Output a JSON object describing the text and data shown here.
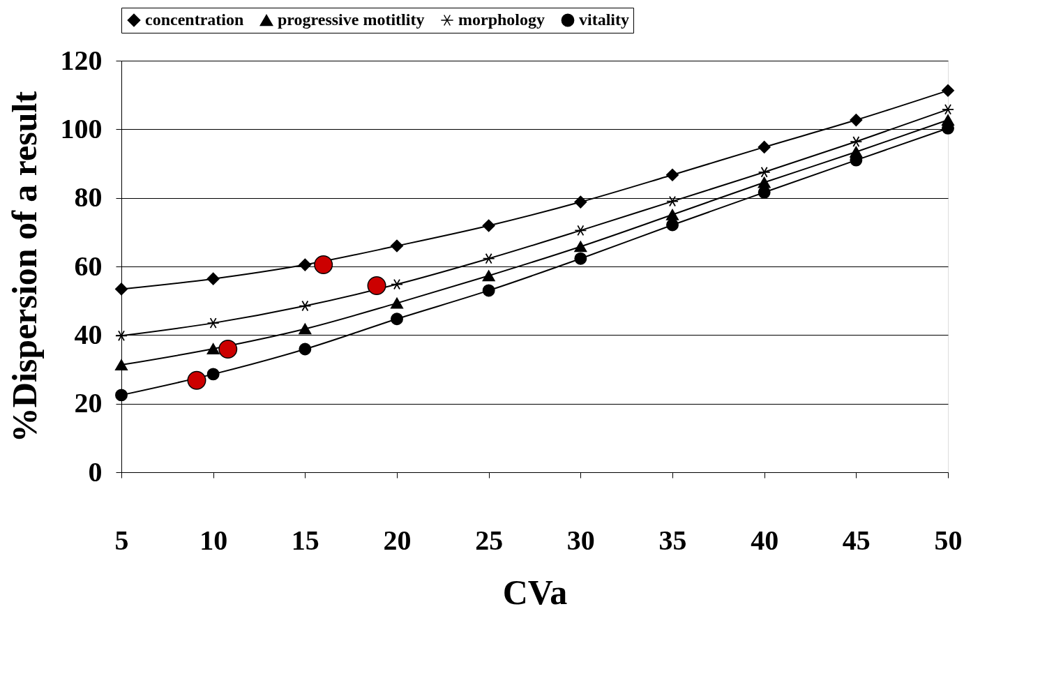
{
  "chart_data": {
    "type": "line",
    "xlabel": "CVa",
    "ylabel": "%Dispersion of a result",
    "x": [
      5,
      10,
      15,
      20,
      25,
      30,
      35,
      40,
      45,
      50
    ],
    "xlim": [
      5,
      50
    ],
    "xticks": [
      5,
      10,
      15,
      20,
      25,
      30,
      35,
      40,
      45,
      50
    ],
    "ylim": [
      0,
      120
    ],
    "yticks": [
      0,
      20,
      40,
      60,
      80,
      100,
      120
    ],
    "grid": "y",
    "legend": "top",
    "line_style": "solid",
    "series": [
      {
        "name": "concentration",
        "color": "#000000",
        "marker": "diamond",
        "values": [
          53.4,
          56.4,
          60.5,
          66,
          71.9,
          78.8,
          86.7,
          94.8,
          102.7,
          111.3
        ]
      },
      {
        "name": "progressive motitlity",
        "color": "#000000",
        "marker": "triangle",
        "values": [
          31.3,
          36,
          41.8,
          49.3,
          57.3,
          65.8,
          75.1,
          84.5,
          93.4,
          102.7
        ]
      },
      {
        "name": "morphology",
        "color": "#000000",
        "marker": "cross",
        "values": [
          39.8,
          43.5,
          48.5,
          54.8,
          62.3,
          70.5,
          79,
          87.5,
          96.4,
          105.8
        ]
      },
      {
        "name": "vitality",
        "color": "#000000",
        "marker": "circle",
        "values": [
          22.5,
          28.6,
          35.9,
          44.7,
          53,
          62.3,
          72.1,
          81.6,
          91,
          100.3
        ]
      },
      {
        "type": "scatter",
        "color": "#cc0000",
        "marker": "circle",
        "x": [
          9.1,
          10.8,
          16,
          18.9
        ],
        "values": [
          26.8,
          35.9,
          60.5,
          54.4
        ]
      }
    ]
  }
}
